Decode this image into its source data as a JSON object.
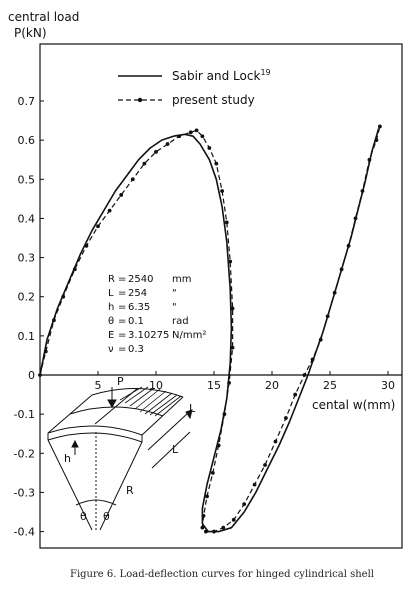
{
  "chart_data": {
    "type": "line",
    "ylabel_line1": "central load",
    "ylabel_line2": "P(kN)",
    "xlabel": "cental  w(mm)",
    "xlim": [
      0,
      32
    ],
    "ylim": [
      -0.45,
      0.8
    ],
    "x_ticks": [
      5,
      10,
      15,
      20,
      25,
      30
    ],
    "y_ticks": [
      0.7,
      0.6,
      0.5,
      0.4,
      0.3,
      0.2,
      0.1,
      0,
      -0.1,
      -0.2,
      -0.3,
      -0.4
    ],
    "y_tick_labels": [
      "0.7",
      "0.6",
      "0.5",
      "0.4",
      "0.3",
      "0.2",
      "0.1",
      "0",
      "-0.1",
      "-0.2",
      "-0.3",
      "-0.4"
    ],
    "x_tick_labels": [
      "5",
      "10",
      "15",
      "20",
      "25",
      "30"
    ],
    "legend": {
      "sabir_label": "Sabir and Lock",
      "sabir_ref": "19",
      "present_label": "present study"
    },
    "series": [
      {
        "name": "Sabir and Lock",
        "style": "solid",
        "x": [
          0,
          0.6,
          1.5,
          2.5,
          3.5,
          4.5,
          5.5,
          6.5,
          7.5,
          8.5,
          9.5,
          10.5,
          11.5,
          12.5,
          13.2,
          13.8,
          14.6,
          15.2,
          15.7,
          16.1,
          16.4,
          16.5,
          16.4,
          16.1,
          15.6,
          15.0,
          14.4,
          14.0,
          14.0,
          14.5,
          15.4,
          16.5,
          17.6,
          18.6,
          19.6,
          20.6,
          21.5,
          22.3,
          23.1,
          23.8,
          24.4,
          25.0,
          25.6,
          26.2,
          26.8,
          27.4,
          28.0,
          28.6,
          29.2
        ],
        "y": [
          0,
          0.09,
          0.17,
          0.24,
          0.31,
          0.37,
          0.42,
          0.47,
          0.51,
          0.55,
          0.58,
          0.6,
          0.61,
          0.615,
          0.61,
          0.59,
          0.55,
          0.5,
          0.43,
          0.34,
          0.22,
          0.12,
          0.03,
          -0.06,
          -0.14,
          -0.21,
          -0.28,
          -0.34,
          -0.38,
          -0.4,
          -0.4,
          -0.39,
          -0.35,
          -0.3,
          -0.24,
          -0.18,
          -0.12,
          -0.06,
          0.0,
          0.06,
          0.11,
          0.17,
          0.23,
          0.29,
          0.35,
          0.42,
          0.49,
          0.57,
          0.63
        ]
      },
      {
        "name": "present study",
        "style": "dashed-dot",
        "x": [
          0,
          0.5,
          1.2,
          2.0,
          3.0,
          4.0,
          5.0,
          6.0,
          7.0,
          8.0,
          9.0,
          10.0,
          11.0,
          12.0,
          13.0,
          13.5,
          14.0,
          14.6,
          15.2,
          15.7,
          16.1,
          16.4,
          16.6,
          16.6,
          16.3,
          15.9,
          15.4,
          14.9,
          14.4,
          14.1,
          14.0,
          14.3,
          15.0,
          15.8,
          16.7,
          17.6,
          18.5,
          19.4,
          20.3,
          21.2,
          22.0,
          22.8,
          23.5,
          24.2,
          24.8,
          25.4,
          26.0,
          26.6,
          27.2,
          27.8,
          28.4,
          29.0,
          29.3
        ],
        "y": [
          0,
          0.06,
          0.14,
          0.2,
          0.27,
          0.33,
          0.38,
          0.42,
          0.46,
          0.5,
          0.54,
          0.57,
          0.59,
          0.61,
          0.62,
          0.625,
          0.61,
          0.58,
          0.54,
          0.47,
          0.39,
          0.29,
          0.17,
          0.07,
          -0.02,
          -0.1,
          -0.18,
          -0.25,
          -0.31,
          -0.36,
          -0.39,
          -0.4,
          -0.4,
          -0.39,
          -0.37,
          -0.33,
          -0.28,
          -0.23,
          -0.17,
          -0.11,
          -0.05,
          0.0,
          0.04,
          0.09,
          0.15,
          0.21,
          0.27,
          0.33,
          0.4,
          0.47,
          0.55,
          0.6,
          0.635
        ]
      }
    ]
  },
  "parameters": [
    {
      "sym": "R",
      "eq": "=",
      "val": "2540",
      "unit": "mm"
    },
    {
      "sym": "L",
      "eq": "=",
      "val": "254",
      "unit": "\""
    },
    {
      "sym": "h",
      "eq": "=",
      "val": "6.35",
      "unit": "\""
    },
    {
      "sym": "θ",
      "eq": "=",
      "val": "0.1",
      "unit": "rad"
    },
    {
      "sym": "E",
      "eq": "=",
      "val": "3.10275",
      "unit": "N/mm²"
    },
    {
      "sym": "ν",
      "eq": "=",
      "val": "0.3",
      "unit": ""
    }
  ],
  "inset_labels": {
    "load": "P",
    "thickness": "h",
    "length1": "L",
    "length2": "L",
    "radius": "R",
    "angle1": "θ",
    "angle2": "θ"
  },
  "caption": "Figure 6. Load-deflection curves for hinged cylindrical shell"
}
